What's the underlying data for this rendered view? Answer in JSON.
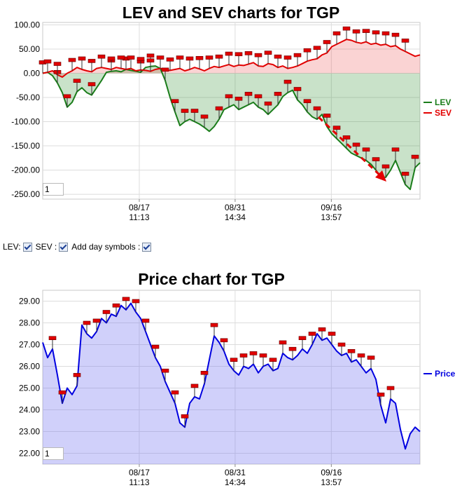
{
  "controls": {
    "lev_label": "LEV:",
    "sev_label": "SEV :",
    "day_label": "Add day symbols :",
    "lev_checked": true,
    "sev_checked": true,
    "day_checked": true
  },
  "chart_data": [
    {
      "type": "area",
      "title": "LEV and SEV charts for TGP",
      "x_ticks": [
        "08/17\n11:13",
        "08/31\n14:34",
        "09/16\n13:57"
      ],
      "y_ticks": [
        "100.00",
        "50.00",
        "0.00",
        "-50.00",
        "-100.00",
        "-150.00",
        "-200.00",
        "-250.00"
      ],
      "ylim": [
        -260,
        105
      ],
      "legend_placement": "right",
      "zoom_value": "1",
      "series": [
        {
          "name": "LEV",
          "color": "#1a7d1a",
          "values": [
            0,
            2,
            -5,
            -20,
            -40,
            -70,
            -60,
            -38,
            -30,
            -40,
            -45,
            -30,
            -15,
            2,
            4,
            5,
            3,
            8,
            6,
            4,
            2,
            12,
            14,
            15,
            10,
            -15,
            -50,
            -80,
            -108,
            -100,
            -95,
            -100,
            -105,
            -112,
            -120,
            -110,
            -95,
            -75,
            -70,
            -65,
            -75,
            -70,
            -65,
            -60,
            -70,
            -75,
            -85,
            -75,
            -65,
            -48,
            -40,
            -35,
            -55,
            -65,
            -80,
            -90,
            -95,
            -85,
            -110,
            -125,
            -135,
            -145,
            -155,
            -165,
            -170,
            -175,
            -180,
            -188,
            -200,
            -215,
            -215,
            -200,
            -180,
            -205,
            -230,
            -240,
            -195,
            -185
          ]
        },
        {
          "name": "SEV",
          "color": "#e30000",
          "values": [
            0,
            2,
            5,
            -3,
            -8,
            0,
            5,
            12,
            8,
            5,
            3,
            10,
            12,
            10,
            8,
            12,
            10,
            8,
            10,
            5,
            7,
            6,
            4,
            8,
            10,
            7,
            6,
            8,
            10,
            5,
            8,
            12,
            9,
            5,
            10,
            14,
            12,
            15,
            18,
            14,
            17,
            16,
            19,
            22,
            15,
            14,
            20,
            18,
            12,
            15,
            10,
            12,
            15,
            20,
            25,
            28,
            30,
            38,
            42,
            55,
            60,
            65,
            70,
            68,
            64,
            62,
            65,
            60,
            62,
            58,
            60,
            55,
            57,
            50,
            45,
            40,
            35,
            38
          ]
        }
      ],
      "day_markers_series": "LEV",
      "markers_lev": [
        0,
        3,
        5,
        7,
        10,
        14,
        17,
        20,
        22,
        25,
        27,
        29,
        31,
        33,
        36,
        38,
        40,
        42,
        44,
        46,
        48,
        50,
        52,
        54,
        56,
        58,
        60,
        62,
        64,
        66,
        68,
        70,
        72,
        74,
        76
      ],
      "markers_sev": [
        1,
        3,
        6,
        8,
        10,
        12,
        14,
        16,
        18,
        20,
        22,
        24,
        26,
        28,
        30,
        32,
        34,
        36,
        38,
        40,
        42,
        44,
        46,
        48,
        50,
        52,
        54,
        56,
        58,
        60,
        62,
        64,
        66,
        68,
        70,
        72,
        74
      ]
    },
    {
      "type": "area",
      "title": "Price chart for TGP",
      "x_ticks": [
        "08/17\n11:13",
        "08/31\n14:34",
        "09/16\n13:57"
      ],
      "y_ticks": [
        "29.00",
        "28.00",
        "27.00",
        "26.00",
        "25.00",
        "24.00",
        "23.00",
        "22.00"
      ],
      "ylim": [
        21.5,
        29.5
      ],
      "legend_placement": "right",
      "zoom_value": "1",
      "series": [
        {
          "name": "Price",
          "color": "#0000e0",
          "values": [
            27.1,
            26.4,
            26.8,
            25.6,
            24.3,
            25.0,
            24.7,
            25.1,
            27.9,
            27.5,
            27.3,
            27.6,
            28.2,
            28.0,
            28.4,
            28.3,
            28.8,
            28.6,
            28.9,
            28.5,
            28.2,
            27.6,
            27.0,
            26.4,
            26.0,
            25.3,
            24.8,
            24.3,
            23.4,
            23.2,
            24.3,
            24.6,
            24.5,
            25.2,
            26.3,
            27.4,
            27.1,
            26.7,
            26.1,
            25.8,
            25.6,
            26.0,
            25.9,
            26.1,
            25.7,
            26.0,
            26.1,
            25.8,
            25.9,
            26.6,
            26.4,
            26.3,
            26.5,
            26.8,
            26.6,
            27.0,
            27.5,
            27.2,
            27.3,
            27.0,
            26.7,
            26.5,
            26.6,
            26.2,
            26.3,
            26.0,
            25.7,
            25.9,
            25.4,
            24.2,
            23.4,
            24.5,
            24.3,
            23.1,
            22.2,
            22.9,
            23.2,
            23.0
          ]
        }
      ],
      "day_markers": [
        2,
        4,
        7,
        9,
        11,
        13,
        15,
        17,
        19,
        21,
        23,
        25,
        27,
        29,
        31,
        33,
        35,
        37,
        39,
        41,
        43,
        45,
        47,
        49,
        51,
        53,
        55,
        57,
        59,
        61,
        63,
        65,
        67,
        69,
        71
      ]
    }
  ]
}
